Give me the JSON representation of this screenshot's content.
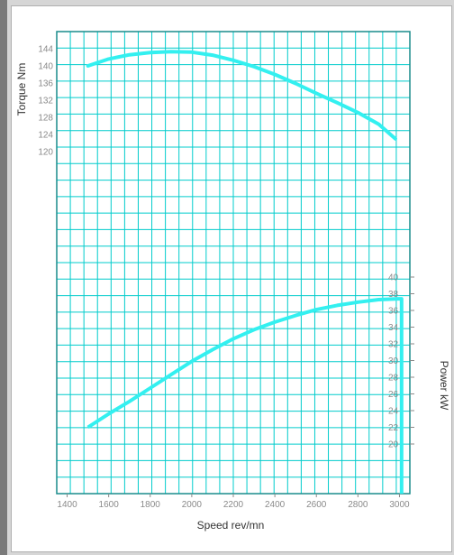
{
  "colors": {
    "grid": "#00cccc",
    "curve": "#33f0f0",
    "plot_border": "#1a8c8c",
    "text": "#333333",
    "tick_text": "#8a8a8a"
  },
  "chart_data": {
    "type": "line",
    "xlabel": "Speed rev/mn",
    "x_ticks": [
      1400,
      1600,
      1800,
      2000,
      2200,
      2400,
      2600,
      2800,
      3000
    ],
    "xlim": [
      1350,
      3050
    ],
    "grid": true,
    "torque": {
      "ylabel": "Torque Nm",
      "y_ticks": [
        144,
        140,
        136,
        132,
        128,
        124,
        120
      ],
      "x": [
        1500,
        1600,
        1700,
        1800,
        1900,
        2000,
        2100,
        2200,
        2300,
        2400,
        2500,
        2600,
        2700,
        2800,
        2900,
        2980
      ],
      "y": [
        140,
        141.6,
        142.6,
        143.1,
        143.3,
        143.2,
        142.5,
        141.3,
        139.8,
        138.0,
        135.9,
        133.6,
        131.4,
        129.1,
        126.4,
        123.0
      ]
    },
    "power": {
      "ylabel": "Power kW",
      "y_ticks": [
        40,
        38,
        36,
        34,
        32,
        30,
        28,
        26,
        24,
        22,
        20
      ],
      "x": [
        1500,
        1600,
        1700,
        1800,
        1900,
        2000,
        2100,
        2200,
        2300,
        2400,
        2500,
        2600,
        2700,
        2800,
        2900,
        2990,
        3010
      ],
      "y": [
        22.0,
        23.6,
        25.1,
        26.7,
        28.3,
        29.9,
        31.3,
        32.6,
        33.7,
        34.6,
        35.4,
        36.1,
        36.6,
        37.0,
        37.3,
        37.4,
        37.4
      ]
    }
  }
}
